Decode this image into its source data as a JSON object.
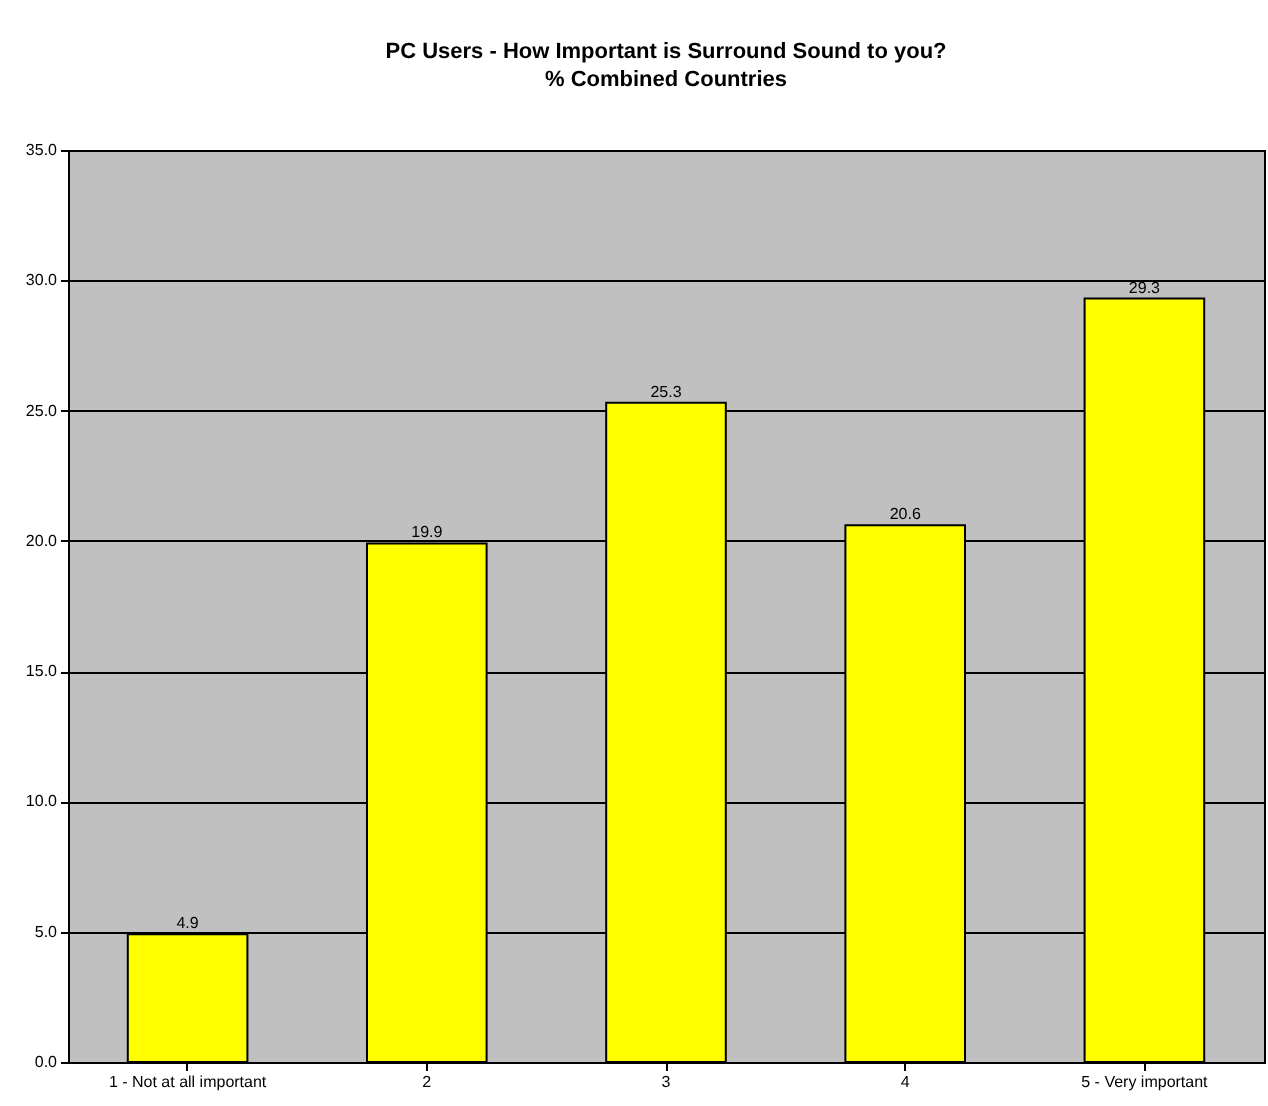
{
  "chart_data": {
    "type": "bar",
    "title": "PC Users - How Important is Surround Sound to you?",
    "subtitle": "% Combined Countries",
    "categories": [
      "1 - Not at all important",
      "2",
      "3",
      "4",
      "5 - Very important"
    ],
    "values": [
      4.9,
      19.9,
      25.3,
      20.6,
      29.3
    ],
    "color": "#ffff00",
    "ylim": [
      0,
      35
    ],
    "yticks": [
      {
        "value": 0,
        "label": "0.0"
      },
      {
        "value": 5,
        "label": "5.0"
      },
      {
        "value": 10,
        "label": "10.0"
      },
      {
        "value": 15,
        "label": "15.0"
      },
      {
        "value": 20,
        "label": "20.0"
      },
      {
        "value": 25,
        "label": "25.0"
      },
      {
        "value": 30,
        "label": "30.0"
      },
      {
        "value": 35,
        "label": "35.0"
      }
    ],
    "grid": "y",
    "data_labels": true
  }
}
